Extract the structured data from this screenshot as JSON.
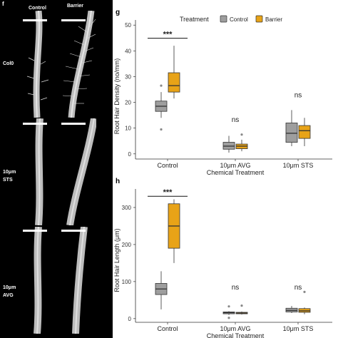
{
  "figure": {
    "panel_f_letter": "f",
    "panel_g_letter": "g",
    "panel_h_letter": "h",
    "columns": [
      "Control",
      "Barrier"
    ],
    "rows": [
      "Col0",
      "10μm\nSTS",
      "10μm\nAVG"
    ]
  },
  "colors": {
    "control_fill": "#9e9e9e",
    "barrier_fill": "#e8a317",
    "box_stroke": "#333333",
    "outlier": "#888888"
  },
  "chart_data": [
    {
      "id": "g",
      "type": "boxplot",
      "title": "",
      "legend_title": "Treatment",
      "legend_position": "top",
      "series": [
        {
          "name": "Control",
          "color": "#9e9e9e"
        },
        {
          "name": "Barrier",
          "color": "#e8a317"
        }
      ],
      "categories": [
        "Control",
        "10μm AVG",
        "10μm STS"
      ],
      "xlabel": "Chemical Treatment",
      "ylabel": "Root Hair Density (no/mm)",
      "ylim": [
        -2,
        52
      ],
      "yticks": [
        0,
        10,
        20,
        30,
        40,
        50
      ],
      "grid": false,
      "boxes": [
        {
          "category": "Control",
          "series": "Control",
          "min": 14,
          "q1": 16.5,
          "median": 18.5,
          "q3": 20.5,
          "max": 24,
          "outliers": [
            9.5,
            26.5
          ]
        },
        {
          "category": "Control",
          "series": "Barrier",
          "min": 21.5,
          "q1": 24,
          "median": 26.5,
          "q3": 31.5,
          "max": 42,
          "outliers": []
        },
        {
          "category": "10μm AVG",
          "series": "Control",
          "min": 0.5,
          "q1": 1.8,
          "median": 3,
          "q3": 4.5,
          "max": 7,
          "outliers": []
        },
        {
          "category": "10μm AVG",
          "series": "Barrier",
          "min": 1,
          "q1": 2,
          "median": 3,
          "q3": 3.8,
          "max": 5.5,
          "outliers": [
            7.5
          ]
        },
        {
          "category": "10μm STS",
          "series": "Control",
          "min": 3,
          "q1": 4.5,
          "median": 8,
          "q3": 12,
          "max": 17,
          "outliers": []
        },
        {
          "category": "10μm STS",
          "series": "Barrier",
          "min": 3,
          "q1": 6,
          "median": 9,
          "q3": 11,
          "max": 14,
          "outliers": []
        }
      ],
      "annotations": [
        {
          "text": "***",
          "category": "Control",
          "y": 46,
          "bracket": true
        },
        {
          "text": "ns",
          "category": "10μm AVG",
          "y": 13,
          "bracket": false
        },
        {
          "text": "ns",
          "category": "10μm STS",
          "y": 22.5,
          "bracket": false
        }
      ]
    },
    {
      "id": "h",
      "type": "boxplot",
      "title": "",
      "series": [
        {
          "name": "Control",
          "color": "#9e9e9e"
        },
        {
          "name": "Barrier",
          "color": "#e8a317"
        }
      ],
      "categories": [
        "Control",
        "10μm AVG",
        "10μm STS"
      ],
      "xlabel": "Chemical Treatment",
      "ylabel": "Root Hair Length (μm)",
      "ylim": [
        -10,
        350
      ],
      "yticks": [
        0,
        100,
        200,
        300
      ],
      "grid": false,
      "boxes": [
        {
          "category": "Control",
          "series": "Control",
          "min": 25,
          "q1": 65,
          "median": 80,
          "q3": 95,
          "max": 128,
          "outliers": []
        },
        {
          "category": "Control",
          "series": "Barrier",
          "min": 150,
          "q1": 190,
          "median": 250,
          "q3": 310,
          "max": 322,
          "outliers": []
        },
        {
          "category": "10μm AVG",
          "series": "Control",
          "min": 10,
          "q1": 13,
          "median": 16,
          "q3": 18,
          "max": 20,
          "outliers": [
            2,
            33
          ]
        },
        {
          "category": "10μm AVG",
          "series": "Barrier",
          "min": 11,
          "q1": 13,
          "median": 15,
          "q3": 17,
          "max": 19,
          "outliers": [
            35
          ]
        },
        {
          "category": "10μm STS",
          "series": "Control",
          "min": 15,
          "q1": 18,
          "median": 22,
          "q3": 28,
          "max": 34,
          "outliers": []
        },
        {
          "category": "10μm STS",
          "series": "Barrier",
          "min": 12,
          "q1": 17,
          "median": 21,
          "q3": 27,
          "max": 30,
          "outliers": [
            72
          ]
        }
      ],
      "annotations": [
        {
          "text": "***",
          "category": "Control",
          "y": 338,
          "bracket": true
        },
        {
          "text": "ns",
          "category": "10μm AVG",
          "y": 82,
          "bracket": false
        },
        {
          "text": "ns",
          "category": "10μm STS",
          "y": 82,
          "bracket": false
        }
      ]
    }
  ]
}
